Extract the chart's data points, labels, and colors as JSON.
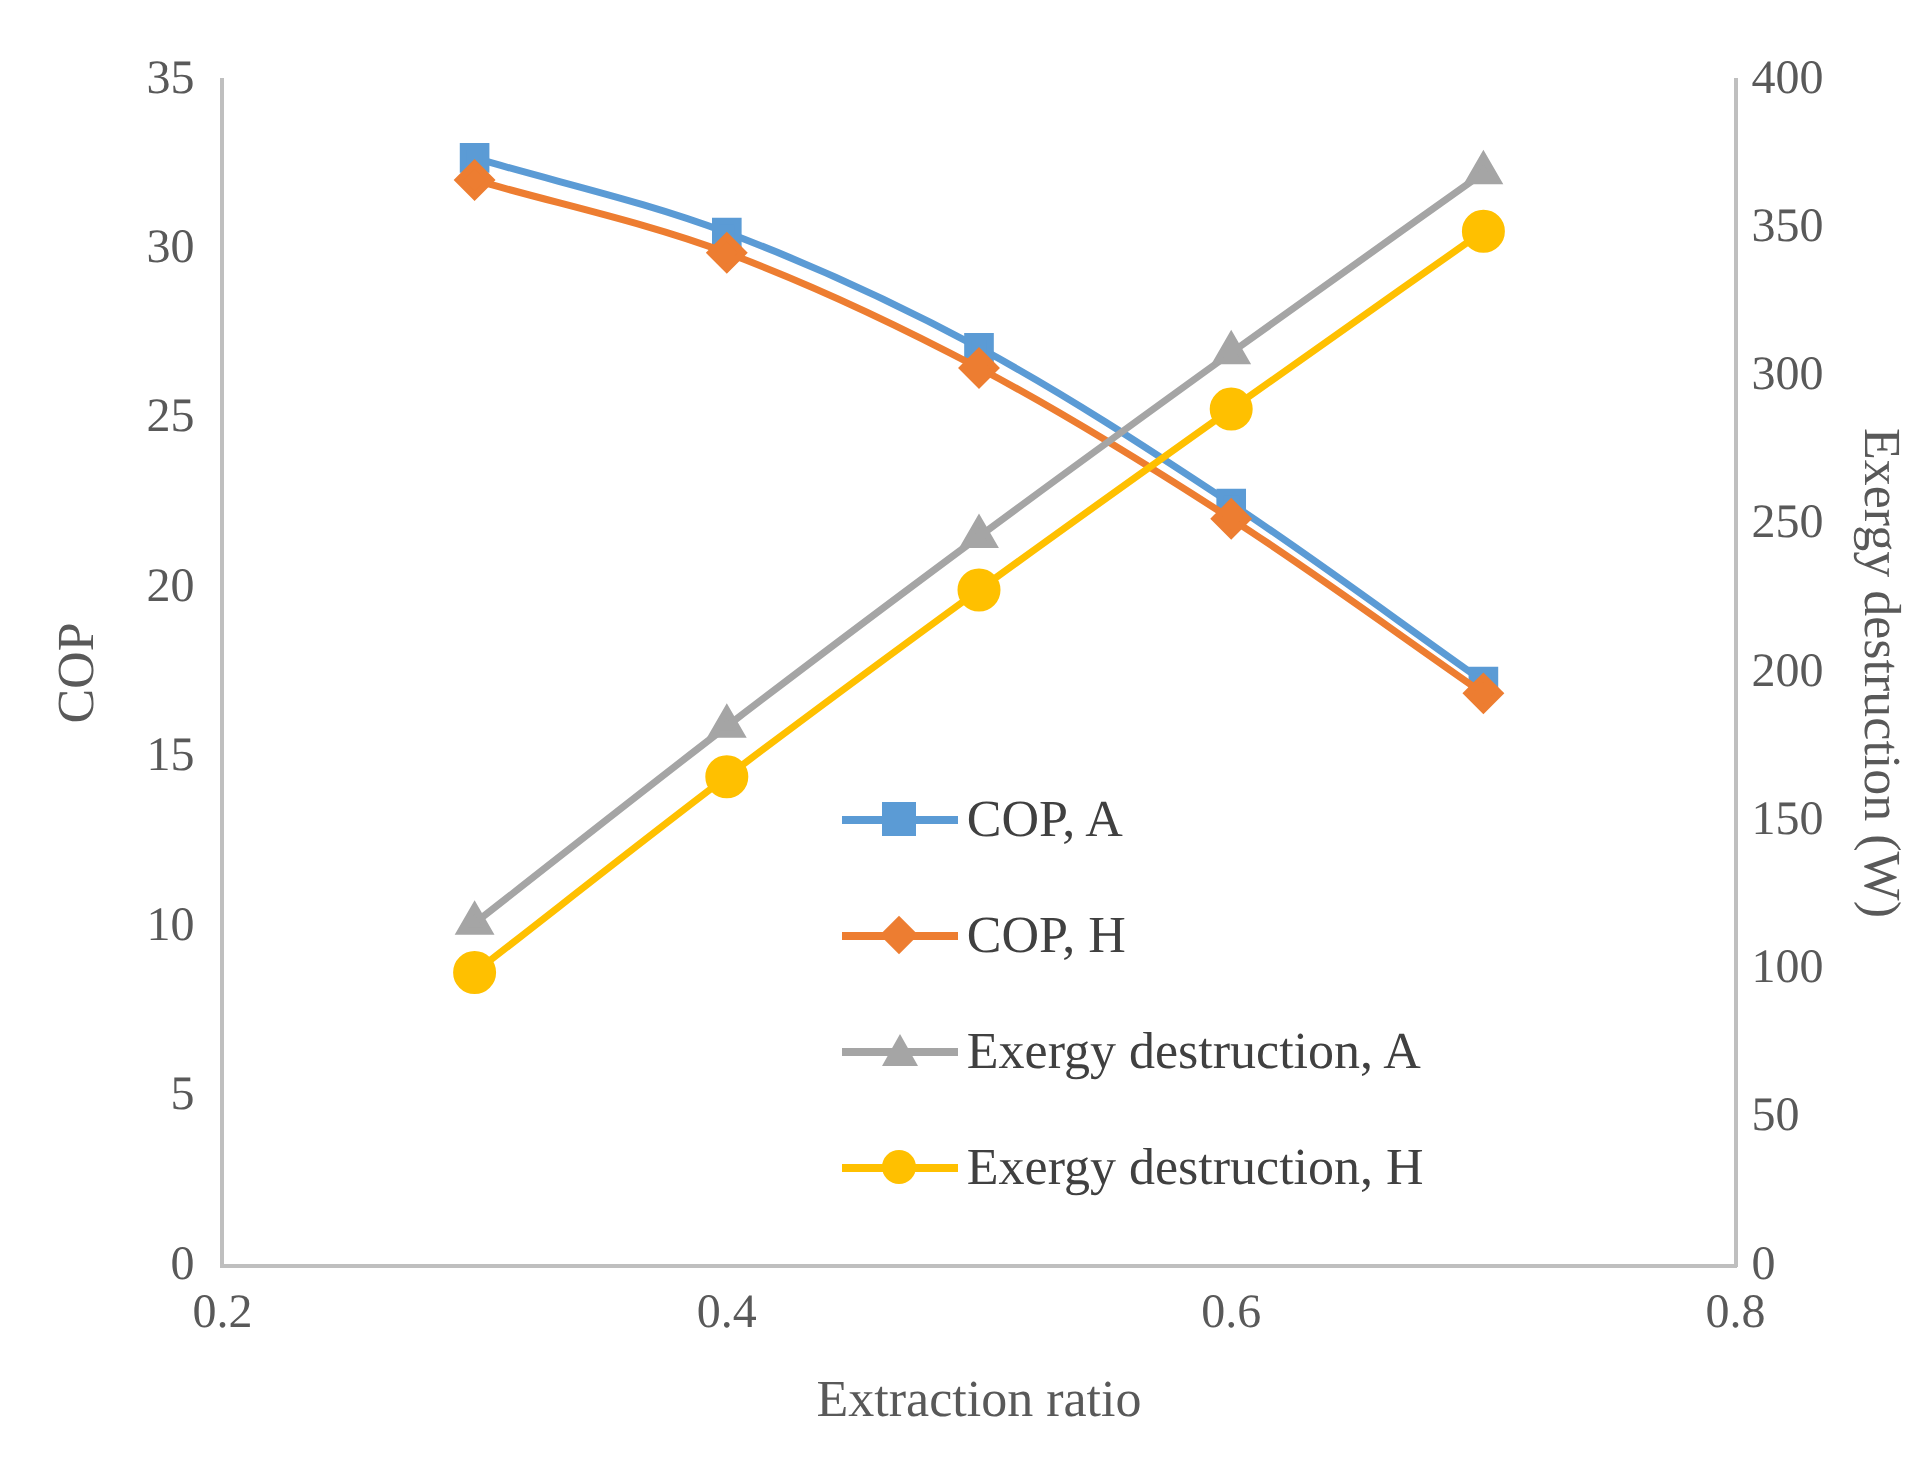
{
  "chart_data": {
    "type": "line",
    "xlabel": "Extraction ratio",
    "ylabel": "COP",
    "y2label": "Exergy destruction (W)",
    "x": [
      0.3,
      0.4,
      0.5,
      0.6,
      0.7
    ],
    "series": [
      {
        "name": "COP, A",
        "color": "#5b9bd5",
        "marker": "square",
        "values": [
          32.7,
          30.5,
          27.1,
          22.5,
          17.25
        ]
      },
      {
        "name": "COP, H",
        "color": "#ed7d31",
        "marker": "diamond",
        "values": [
          32.05,
          29.9,
          26.5,
          22.05,
          16.9
        ]
      },
      {
        "name": "Exergy destruction, A",
        "color": "#a5a5a5",
        "marker": "triangle",
        "axis": "y2",
        "values": [
          115.6,
          182,
          246,
          308,
          368.7
        ]
      },
      {
        "name": "Exergy destruction, H",
        "color": "#ffc000",
        "marker": "circle",
        "axis": "y2",
        "values": [
          99,
          165,
          228,
          289,
          349
        ]
      }
    ],
    "xlim": [
      0.2,
      0.8
    ],
    "xticks": [
      0.2,
      0.4,
      0.6,
      0.8
    ],
    "ylim": [
      0,
      35
    ],
    "yticks": [
      0,
      5,
      10,
      15,
      20,
      25,
      30,
      35
    ],
    "y2lim": [
      0,
      400
    ],
    "y2ticks": [
      0,
      50,
      100,
      150,
      200,
      250,
      300,
      350,
      400
    ],
    "grid": false,
    "legend": "bottom right"
  }
}
